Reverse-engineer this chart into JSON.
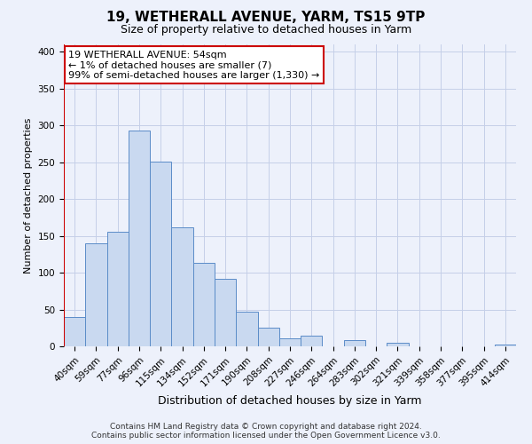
{
  "title": "19, WETHERALL AVENUE, YARM, TS15 9TP",
  "subtitle": "Size of property relative to detached houses in Yarm",
  "xlabel": "Distribution of detached houses by size in Yarm",
  "ylabel": "Number of detached properties",
  "bar_labels": [
    "40sqm",
    "59sqm",
    "77sqm",
    "96sqm",
    "115sqm",
    "134sqm",
    "152sqm",
    "171sqm",
    "190sqm",
    "208sqm",
    "227sqm",
    "246sqm",
    "264sqm",
    "283sqm",
    "302sqm",
    "321sqm",
    "339sqm",
    "358sqm",
    "377sqm",
    "395sqm",
    "414sqm"
  ],
  "bar_values": [
    40,
    140,
    155,
    293,
    251,
    161,
    113,
    92,
    47,
    25,
    11,
    14,
    0,
    9,
    0,
    5,
    0,
    0,
    0,
    0,
    3
  ],
  "bar_color": "#c9d9f0",
  "bar_edge_color": "#5b8cc8",
  "ylim": [
    0,
    410
  ],
  "yticks": [
    0,
    50,
    100,
    150,
    200,
    250,
    300,
    350,
    400
  ],
  "marker_color": "#cc0000",
  "annotation_title": "19 WETHERALL AVENUE: 54sqm",
  "annotation_line2": "← 1% of detached houses are smaller (7)",
  "annotation_line3": "99% of semi-detached houses are larger (1,330) →",
  "annotation_box_color": "#ffffff",
  "annotation_border_color": "#cc0000",
  "footer_line1": "Contains HM Land Registry data © Crown copyright and database right 2024.",
  "footer_line2": "Contains public sector information licensed under the Open Government Licence v3.0.",
  "bg_color": "#edf1fb",
  "grid_color": "#c5cfe8",
  "title_fontsize": 11,
  "subtitle_fontsize": 9,
  "ylabel_fontsize": 8,
  "xlabel_fontsize": 9,
  "tick_fontsize": 7.5,
  "footer_fontsize": 6.5,
  "annot_fontsize": 8
}
